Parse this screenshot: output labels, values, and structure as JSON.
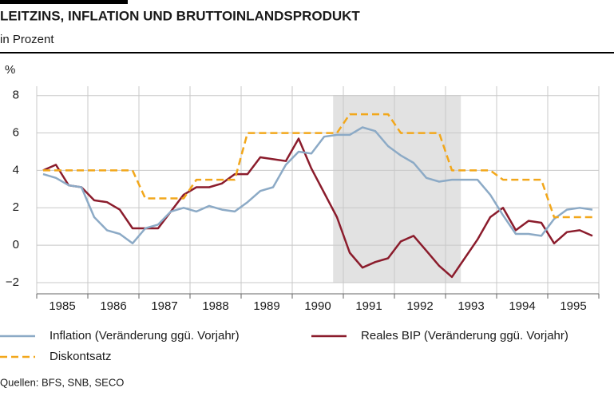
{
  "chart_data": {
    "type": "line",
    "title": "LEITZINS, INFLATION UND BRUTTOINLANDSPRODUKT",
    "subtitle": "in Prozent",
    "y_label": "%",
    "source": "Quellen: BFS, SNB, SECO",
    "x": [
      1985.125,
      1985.375,
      1985.625,
      1985.875,
      1986.125,
      1986.375,
      1986.625,
      1986.875,
      1987.125,
      1987.375,
      1987.625,
      1987.875,
      1988.125,
      1988.375,
      1988.625,
      1988.875,
      1989.125,
      1989.375,
      1989.625,
      1989.875,
      1990.125,
      1990.375,
      1990.625,
      1990.875,
      1991.125,
      1991.375,
      1991.625,
      1991.875,
      1992.125,
      1992.375,
      1992.625,
      1992.875,
      1993.125,
      1993.375,
      1993.625,
      1993.875,
      1994.125,
      1994.375,
      1994.625,
      1994.875,
      1995.125,
      1995.375,
      1995.625,
      1995.875
    ],
    "series": [
      {
        "name": "Inflation (Veränderung ggü. Vorjahr)",
        "color": "#8caac6",
        "dash": false,
        "values": [
          3.8,
          3.6,
          3.2,
          3.1,
          1.5,
          0.8,
          0.6,
          0.1,
          0.9,
          1.1,
          1.8,
          2.0,
          1.8,
          2.1,
          1.9,
          1.8,
          2.3,
          2.9,
          3.1,
          4.3,
          5.0,
          4.9,
          5.8,
          5.9,
          5.9,
          6.3,
          6.1,
          5.3,
          4.8,
          4.4,
          3.6,
          3.4,
          3.5,
          3.5,
          3.5,
          2.7,
          1.6,
          0.6,
          0.6,
          0.5,
          1.4,
          1.9,
          2.0,
          1.9
        ]
      },
      {
        "name": "Reales BIP (Veränderung ggü. Vorjahr)",
        "color": "#8b1c2c",
        "dash": false,
        "values": [
          4.0,
          4.3,
          3.2,
          3.1,
          2.4,
          2.3,
          1.9,
          0.9,
          0.9,
          0.9,
          1.8,
          2.7,
          3.1,
          3.1,
          3.3,
          3.8,
          3.8,
          4.7,
          4.6,
          4.5,
          5.7,
          4.1,
          2.8,
          1.5,
          -0.4,
          -1.2,
          -0.9,
          -0.7,
          0.2,
          0.5,
          -0.3,
          -1.1,
          -1.7,
          -0.7,
          0.3,
          1.5,
          2.0,
          0.8,
          1.3,
          1.2,
          0.1,
          0.7,
          0.8,
          0.5
        ]
      },
      {
        "name": "Diskontsatz",
        "color": "#f2a71b",
        "dash": true,
        "values": [
          4,
          4,
          4,
          4,
          4,
          4,
          4,
          4,
          2.5,
          2.5,
          2.5,
          2.5,
          3.5,
          3.5,
          3.5,
          3.5,
          6,
          6,
          6,
          6,
          6,
          6,
          6,
          6,
          7,
          7,
          7,
          7,
          6,
          6,
          6,
          6,
          4,
          4,
          4,
          4,
          3.5,
          3.5,
          3.5,
          3.5,
          1.5,
          1.5,
          1.5,
          1.5
        ]
      }
    ],
    "xlim": [
      1985,
      1996
    ],
    "xticks": [
      {
        "value": 1985.5,
        "label": "1985"
      },
      {
        "value": 1986.5,
        "label": "1986"
      },
      {
        "value": 1987.5,
        "label": "1987"
      },
      {
        "value": 1988.5,
        "label": "1988"
      },
      {
        "value": 1989.5,
        "label": "1989"
      },
      {
        "value": 1990.5,
        "label": "1990"
      },
      {
        "value": 1991.5,
        "label": "1991"
      },
      {
        "value": 1992.5,
        "label": "1992"
      },
      {
        "value": 1993.5,
        "label": "1993"
      },
      {
        "value": 1994.5,
        "label": "1994"
      },
      {
        "value": 1995.5,
        "label": "1995"
      }
    ],
    "ylim": [
      -2.6,
      8.5
    ],
    "yticks": [
      {
        "value": -2,
        "label": "−2"
      },
      0,
      2,
      4,
      6,
      8
    ],
    "shaded_region": [
      1990.8,
      1993.3
    ],
    "shade_color": "#e2e2e2",
    "grid": true
  }
}
